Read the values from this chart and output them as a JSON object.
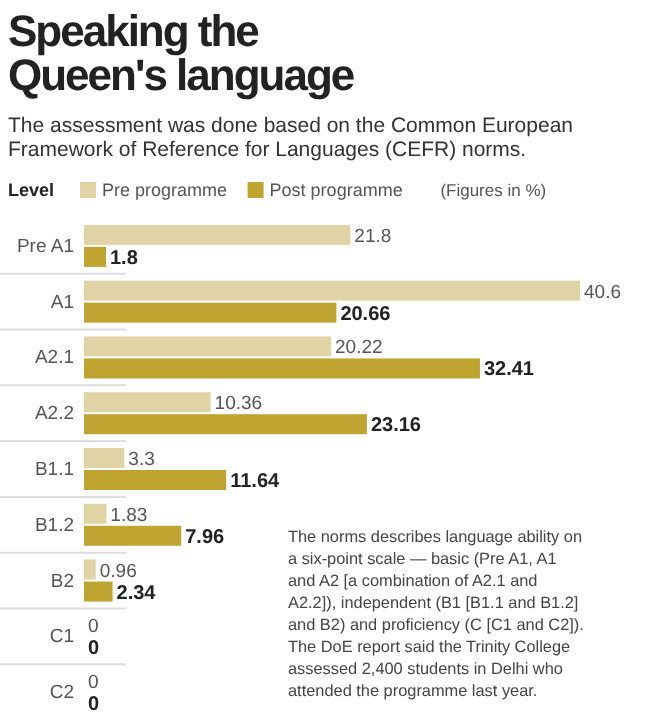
{
  "chart_data": {
    "type": "bar",
    "orientation": "horizontal",
    "title": "Speaking the Queen's language",
    "subtitle": "The assessment was done based on the Common European Framework of Reference for Languages (CEFR) norms.",
    "legend_title": "Level",
    "legend": "top left",
    "data_labels": true,
    "categories": [
      "Pre A1",
      "A1",
      "A2.1",
      "A2.2",
      "B1.1",
      "B1.2",
      "B2",
      "C1",
      "C2"
    ],
    "series": [
      {
        "name": "Pre programme",
        "color": "#e0d4a6",
        "values": [
          21.8,
          40.6,
          20.22,
          10.36,
          3.3,
          1.83,
          0.96,
          0,
          0
        ]
      },
      {
        "name": "Post programme",
        "color": "#bfa432",
        "values": [
          1.8,
          20.66,
          32.41,
          23.16,
          11.64,
          7.96,
          2.34,
          0,
          0
        ]
      }
    ],
    "annotations": [
      "(Figures in %)",
      "The norms describes language ability on a six-point scale — basic (Pre A1, A1 and A2 [a combination of A2.1 and A2.2]), independent (B1 [B1.1 and B1.2] and B2) and proficiency (C [C1 and C2]). The DoE report said the Trinity College assessed 2,400 students in Delhi who attended the programme last year."
    ]
  }
}
